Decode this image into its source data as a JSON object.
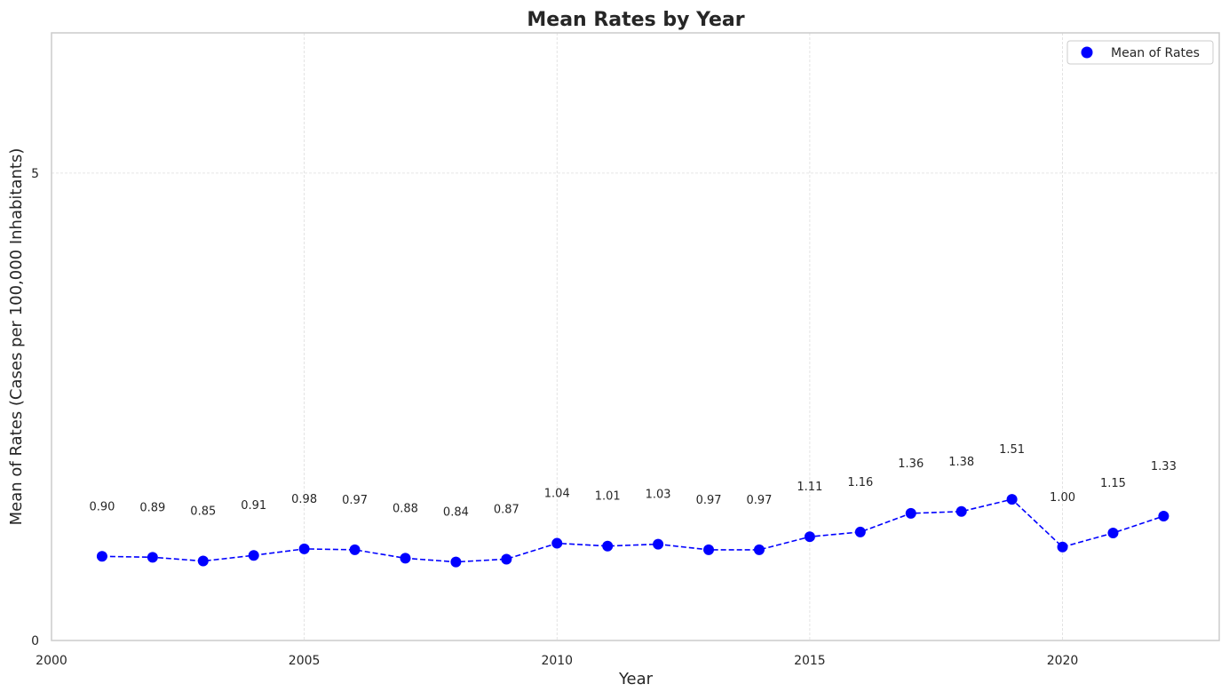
{
  "chart_data": {
    "type": "line",
    "title": "Mean Rates by Year",
    "xlabel": "Year",
    "ylabel": "Mean of Rates (Cases per 100,000 Inhabitants)",
    "xlim": [
      2000,
      2023.1
    ],
    "ylim": [
      0,
      6.5
    ],
    "x_ticks": [
      2000,
      2005,
      2010,
      2015,
      2020
    ],
    "x_tick_labels": [
      "2000",
      "2005",
      "2010",
      "2015",
      "2020"
    ],
    "y_ticks": [
      0,
      5
    ],
    "y_tick_labels": [
      "0",
      "5"
    ],
    "grid": true,
    "legend_position": "top-right",
    "line_style": "dashed",
    "series": [
      {
        "name": "Mean of Rates",
        "color": "#0000ff",
        "x": [
          2001,
          2002,
          2003,
          2004,
          2005,
          2006,
          2007,
          2008,
          2009,
          2010,
          2011,
          2012,
          2013,
          2014,
          2015,
          2016,
          2017,
          2018,
          2019,
          2020,
          2021,
          2022
        ],
        "y": [
          0.9,
          0.89,
          0.85,
          0.91,
          0.98,
          0.97,
          0.88,
          0.84,
          0.87,
          1.04,
          1.01,
          1.03,
          0.97,
          0.97,
          1.11,
          1.16,
          1.36,
          1.38,
          1.51,
          1.0,
          1.15,
          1.33
        ],
        "labels": [
          "0.90",
          "0.89",
          "0.85",
          "0.91",
          "0.98",
          "0.97",
          "0.88",
          "0.84",
          "0.87",
          "1.04",
          "1.01",
          "1.03",
          "0.97",
          "0.97",
          "1.11",
          "1.16",
          "1.36",
          "1.38",
          "1.51",
          "1.00",
          "1.15",
          "1.33"
        ]
      }
    ]
  }
}
